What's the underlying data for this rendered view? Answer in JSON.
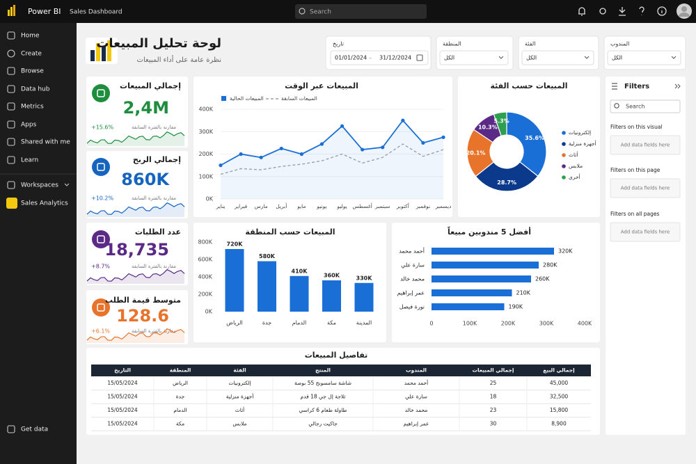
{
  "topbar": {
    "app": "Power BI",
    "page": "Sales Dashboard",
    "search": "Search"
  },
  "nav": {
    "items": [
      "Home",
      "Create",
      "Browse",
      "Data hub",
      "Metrics",
      "Apps",
      "Shared with me",
      "Learn",
      "Workspaces",
      "Sales Analytics",
      "Get data"
    ]
  },
  "header": {
    "title": "لوحة تحليل المبيعات",
    "subtitle": "نظرة عامة على أداء المبيعات"
  },
  "filters": {
    "date": {
      "label": "تاريخ",
      "start": "01/01/2024",
      "sep": "–",
      "end": "31/12/2024"
    },
    "region": {
      "label": "المنطقة",
      "value": "الكل"
    },
    "category": {
      "label": "الفئة",
      "value": "الكل"
    },
    "rep": {
      "label": "المندوب",
      "value": "الكل"
    }
  },
  "kpis": [
    {
      "title": "إجمالي المبيعات",
      "value": "2,4M",
      "change": "+15.6%",
      "note": "مقارنة بالفترة السابقة",
      "color": "#1e8e3e"
    },
    {
      "title": "إجمالي الربح",
      "value": "860K",
      "change": "+10.2%",
      "note": "مقارنة بالفترة السابقة",
      "color": "#1565c0"
    },
    {
      "title": "عدد الطلبات",
      "value": "18,735",
      "change": "+8.7%",
      "note": "مقارنة بالفترة السابقة",
      "color": "#5b2a86"
    },
    {
      "title": "متوسط قيمة الطلب",
      "value": "128.6",
      "change": "+6.1%",
      "note": "مقارنة بالفترة السابقة",
      "color": "#e8742c"
    }
  ],
  "chart_data": [
    {
      "type": "line",
      "title": "المبيعات عبر الوقت",
      "categories": [
        "يناير",
        "فبراير",
        "مارس",
        "أبريل",
        "مايو",
        "يونيو",
        "يوليو",
        "أغسطس",
        "سبتمبر",
        "أكتوبر",
        "نوفمبر",
        "ديسمبر"
      ],
      "series": [
        {
          "name": "المبيعات الحالية",
          "color": "#1a6fd6",
          "values": [
            150000,
            200000,
            185000,
            225000,
            200000,
            245000,
            325000,
            220000,
            230000,
            350000,
            250000,
            275000
          ]
        },
        {
          "name": "المبيعات السابقة",
          "color": "#9aa0a6",
          "values": [
            110000,
            135000,
            130000,
            145000,
            155000,
            170000,
            200000,
            160000,
            185000,
            245000,
            190000,
            220000
          ]
        }
      ],
      "ylim": [
        0,
        400000
      ],
      "yticks": [
        {
          "value": 0,
          "label": "0K"
        },
        {
          "value": 100000,
          "label": "100K"
        },
        {
          "value": 200000,
          "label": "200K"
        },
        {
          "value": 300000,
          "label": "300K"
        },
        {
          "value": 400000,
          "label": "400K"
        }
      ],
      "grid": true
    },
    {
      "type": "pie",
      "title": "المبيعات حسب الفئة",
      "categories": [
        "إلكترونيات",
        "أجهزة منزلية",
        "أثاث",
        "ملابس",
        "أخرى"
      ],
      "values": [
        35.6,
        28.7,
        20.1,
        10.3,
        5.3
      ],
      "value_labels": [
        "35.6%",
        "28.7%",
        "20.1%",
        "10.3%",
        "5.3%"
      ],
      "colors": [
        "#1a6fd6",
        "#0b3a8c",
        "#e8742c",
        "#5b2a86",
        "#2e9e4f"
      ]
    },
    {
      "type": "bar",
      "title": "المبيعات حسب المنطقة",
      "categories": [
        "الرياض",
        "جدة",
        "الدمام",
        "مكة",
        "المدينة"
      ],
      "values": [
        720000,
        580000,
        410000,
        360000,
        330000
      ],
      "value_labels": [
        "720K",
        "580K",
        "410K",
        "360K",
        "330K"
      ],
      "color": "#1a6fd6",
      "ylim": [
        0,
        800000
      ],
      "yticks": [
        {
          "value": 0,
          "label": "0K"
        },
        {
          "value": 200000,
          "label": "200K"
        },
        {
          "value": 400000,
          "label": "400K"
        },
        {
          "value": 600000,
          "label": "600K"
        },
        {
          "value": 800000,
          "label": "800K"
        }
      ]
    },
    {
      "type": "bar",
      "horizontal": true,
      "title": "أفضل 5 مندوبين مبيعاً",
      "categories": [
        "أحمد محمد",
        "سارة علي",
        "محمد خالد",
        "عمر إبراهيم",
        "نورة فيصل"
      ],
      "values": [
        320000,
        280000,
        260000,
        210000,
        190000
      ],
      "value_labels": [
        "320K",
        "280K",
        "260K",
        "210K",
        "190K"
      ],
      "color": "#1a6fd6",
      "xlim": [
        0,
        400000
      ],
      "xticks": [
        0,
        {
          "value": 100000,
          "label": "100K"
        },
        {
          "value": 200000,
          "label": "200K"
        },
        {
          "value": 300000,
          "label": "300K"
        },
        {
          "value": 400000,
          "label": "400K"
        }
      ]
    }
  ],
  "table": {
    "title": "تفاصيل المبيعات",
    "columns": [
      "التاريخ",
      "المنطقة",
      "الفئة",
      "المنتج",
      "المندوب",
      "إجمالي المبيعات",
      "إجمالي البيع"
    ],
    "rows": [
      [
        "15/05/2024",
        "الرياض",
        "إلكترونيات",
        "شاشة سامسونج 55 بوصة",
        "أحمد محمد",
        "25",
        "45,000"
      ],
      [
        "15/05/2024",
        "جدة",
        "أجهزة منزلية",
        "ثلاجة إل جي 18 قدم",
        "سارة علي",
        "18",
        "32,500"
      ],
      [
        "15/05/2024",
        "الدمام",
        "أثاث",
        "طاولة طعام 6 كراسي",
        "محمد خالد",
        "23",
        "15,800"
      ],
      [
        "15/05/2024",
        "مكة",
        "ملابس",
        "جاكيت رجالي",
        "عمر إبراهيم",
        "30",
        "8,900"
      ]
    ]
  },
  "filters_pane": {
    "title": "Filters",
    "search": "Search",
    "sections": [
      {
        "title": "Filters on this visual",
        "placeholder": "Add data fields here"
      },
      {
        "title": "Filters on this page",
        "placeholder": "Add data fields here"
      },
      {
        "title": "Filters on all pages",
        "placeholder": "Add data fields here"
      }
    ]
  }
}
